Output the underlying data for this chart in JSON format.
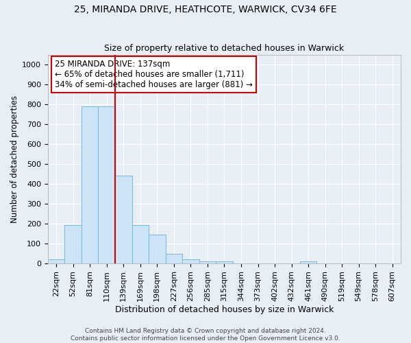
{
  "title1": "25, MIRANDA DRIVE, HEATHCOTE, WARWICK, CV34 6FE",
  "title2": "Size of property relative to detached houses in Warwick",
  "xlabel": "Distribution of detached houses by size in Warwick",
  "ylabel": "Number of detached properties",
  "bar_labels": [
    "22sqm",
    "52sqm",
    "81sqm",
    "110sqm",
    "139sqm",
    "169sqm",
    "198sqm",
    "227sqm",
    "256sqm",
    "285sqm",
    "315sqm",
    "344sqm",
    "373sqm",
    "402sqm",
    "432sqm",
    "461sqm",
    "490sqm",
    "519sqm",
    "549sqm",
    "578sqm",
    "607sqm"
  ],
  "bar_values": [
    20,
    195,
    790,
    790,
    440,
    195,
    145,
    48,
    20,
    12,
    12,
    0,
    0,
    0,
    0,
    10,
    0,
    0,
    0,
    0,
    0
  ],
  "bar_color": "#cce4f5",
  "bar_edge_color": "#7ab8d9",
  "vline_x_index": 4,
  "vline_color": "#cc0000",
  "annotation_text": "25 MIRANDA DRIVE: 137sqm\n← 65% of detached houses are smaller (1,711)\n34% of semi-detached houses are larger (881) →",
  "annotation_box_facecolor": "#ffffff",
  "annotation_box_edgecolor": "#cc0000",
  "ylim": [
    0,
    1050
  ],
  "yticks": [
    0,
    100,
    200,
    300,
    400,
    500,
    600,
    700,
    800,
    900,
    1000
  ],
  "bg_color": "#e8eef5",
  "grid_color": "#ffffff",
  "footer_text": "Contains HM Land Registry data © Crown copyright and database right 2024.\nContains public sector information licensed under the Open Government Licence v3.0.",
  "title1_fontsize": 10,
  "title2_fontsize": 9,
  "xlabel_fontsize": 9,
  "ylabel_fontsize": 8.5,
  "annotation_fontsize": 8.5,
  "tick_fontsize": 8,
  "footer_fontsize": 6.5
}
